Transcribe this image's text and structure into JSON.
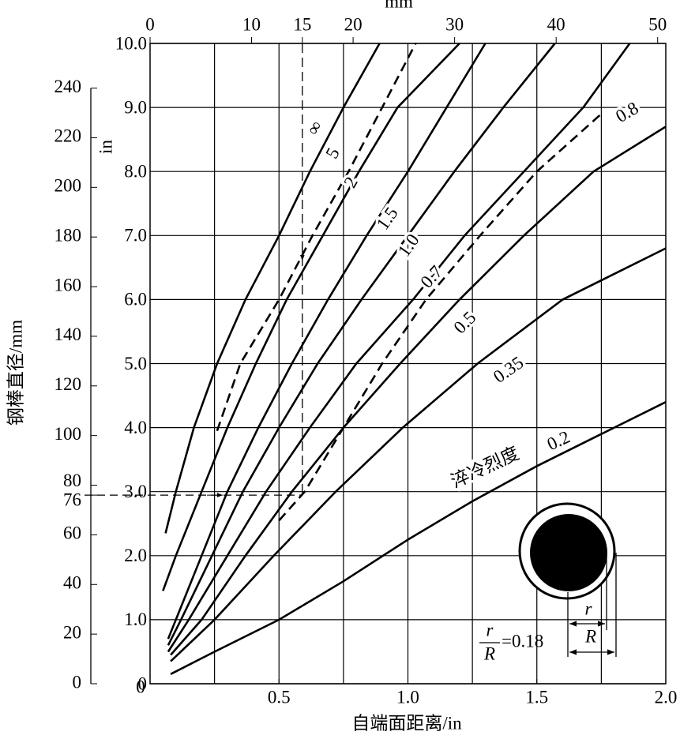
{
  "chart_data": {
    "type": "line",
    "xlabel": "自端面距离/in",
    "ylabel": "in",
    "x2label": "mm",
    "y2label": "钢棒直径/mm",
    "xlim": [
      0,
      2.0
    ],
    "ylim": [
      0,
      10.0
    ],
    "xticks": [
      {
        "value": 0.5,
        "label": "0.5"
      },
      {
        "value": 1,
        "label": "1.0"
      },
      {
        "value": 1.5,
        "label": "1.5"
      },
      {
        "value": 2,
        "label": "2.0"
      }
    ],
    "yticks": [
      0,
      {
        "value": 1,
        "label": "1.0"
      },
      {
        "value": 2,
        "label": "2.0"
      },
      {
        "value": 3,
        "label": "3.0"
      },
      {
        "value": 4,
        "label": "4.0"
      },
      {
        "value": 5,
        "label": "5.0"
      },
      {
        "value": 6,
        "label": "6.0"
      },
      {
        "value": 7,
        "label": "7.0"
      },
      {
        "value": 8,
        "label": "8.0"
      },
      {
        "value": 9,
        "label": "9.0"
      },
      {
        "value": 10,
        "label": "10.0"
      }
    ],
    "xgrid": [
      0.25,
      0.5,
      0.75,
      1.0,
      1.25,
      1.5,
      1.75
    ],
    "x2lim": [
      0,
      50.8
    ],
    "x2ticks": [
      0,
      10,
      15,
      20,
      30,
      40,
      50
    ],
    "y2lim": [
      0,
      258
    ],
    "y2ticks": [
      0,
      20,
      40,
      60,
      76,
      80,
      100,
      120,
      140,
      160,
      180,
      200,
      220,
      240
    ],
    "guides": {
      "x2": 15,
      "y2": 76
    },
    "annotation": "淬冷烈度",
    "grid": true,
    "series": [
      {
        "name": "∞",
        "color": "#000",
        "dashed": false,
        "x": [
          0.06,
          0.1,
          0.17,
          0.26,
          0.37,
          0.5,
          0.62,
          0.75,
          0.89
        ],
        "values": [
          2.35,
          3.0,
          4.0,
          5.0,
          6.0,
          7.0,
          8.0,
          9.0,
          10.0
        ]
      },
      {
        "name": "5",
        "color": "#000",
        "dashed": true,
        "x": [
          0.26,
          0.35,
          0.5,
          0.63,
          0.77,
          0.9,
          1.03
        ],
        "values": [
          3.95,
          5.0,
          6.0,
          7.0,
          8.0,
          9.0,
          10.0
        ]
      },
      {
        "name": "2",
        "color": "#000",
        "dashed": false,
        "x": [
          0.05,
          0.1,
          0.2,
          0.3,
          0.41,
          0.53,
          0.67,
          0.81,
          0.96,
          1.2
        ],
        "values": [
          1.45,
          2.0,
          3.0,
          4.0,
          5.0,
          6.0,
          7.0,
          8.0,
          9.0,
          10.0
        ]
      },
      {
        "name": "1.5",
        "color": "#000",
        "dashed": false,
        "x": [
          0.07,
          0.1,
          0.2,
          0.3,
          0.42,
          0.55,
          0.69,
          0.84,
          1.0,
          1.15,
          1.3
        ],
        "values": [
          0.7,
          1.0,
          2.0,
          3.0,
          4.0,
          5.0,
          6.0,
          7.0,
          8.0,
          9.0,
          10.0
        ]
      },
      {
        "name": "1.0",
        "color": "#000",
        "dashed": false,
        "x": [
          0.07,
          0.12,
          0.24,
          0.36,
          0.5,
          0.65,
          0.82,
          1.0,
          1.18,
          1.37,
          1.57
        ],
        "values": [
          0.6,
          1.0,
          2.0,
          3.0,
          4.0,
          5.0,
          6.0,
          7.0,
          8.0,
          9.0,
          10.0
        ]
      },
      {
        "name": "0.8",
        "color": "#000",
        "dashed": true,
        "x": [
          0.5,
          0.6,
          0.75,
          0.9,
          1.07,
          1.28,
          1.5,
          1.75
        ],
        "values": [
          2.55,
          3.0,
          4.0,
          5.0,
          6.0,
          7.0,
          8.0,
          8.9
        ]
      },
      {
        "name": "0.7",
        "color": "#000",
        "dashed": false,
        "x": [
          0.07,
          0.15,
          0.3,
          0.45,
          0.62,
          0.8,
          1.02,
          1.22,
          1.45,
          1.68,
          1.86
        ],
        "values": [
          0.5,
          1.0,
          2.0,
          3.0,
          4.0,
          5.0,
          6.0,
          7.0,
          8.0,
          9.0,
          10.0
        ]
      },
      {
        "name": "0.5",
        "color": "#000",
        "dashed": false,
        "x": [
          0.08,
          0.2,
          0.37,
          0.55,
          0.75,
          0.97,
          1.2,
          1.45,
          1.72,
          2.0
        ],
        "values": [
          0.45,
          1.0,
          2.0,
          3.0,
          4.0,
          5.0,
          6.0,
          7.0,
          8.0,
          8.7
        ]
      },
      {
        "name": "0.35",
        "color": "#000",
        "dashed": false,
        "x": [
          0.08,
          0.25,
          0.48,
          0.72,
          0.98,
          1.27,
          1.6,
          2.0
        ],
        "values": [
          0.35,
          1.0,
          2.0,
          3.0,
          4.0,
          5.0,
          6.0,
          6.8
        ]
      },
      {
        "name": "0.2",
        "color": "#000",
        "dashed": false,
        "x": [
          0.08,
          0.25,
          0.5,
          0.75,
          1.0,
          1.25,
          1.5,
          1.75,
          2.0
        ],
        "values": [
          0.15,
          0.5,
          1.0,
          1.6,
          2.25,
          2.85,
          3.4,
          3.9,
          4.4
        ]
      }
    ],
    "inset": {
      "numerator": "r",
      "denominator": "R",
      "ratio_text": "=0.18",
      "r_label": "r",
      "R_label": "R"
    }
  }
}
